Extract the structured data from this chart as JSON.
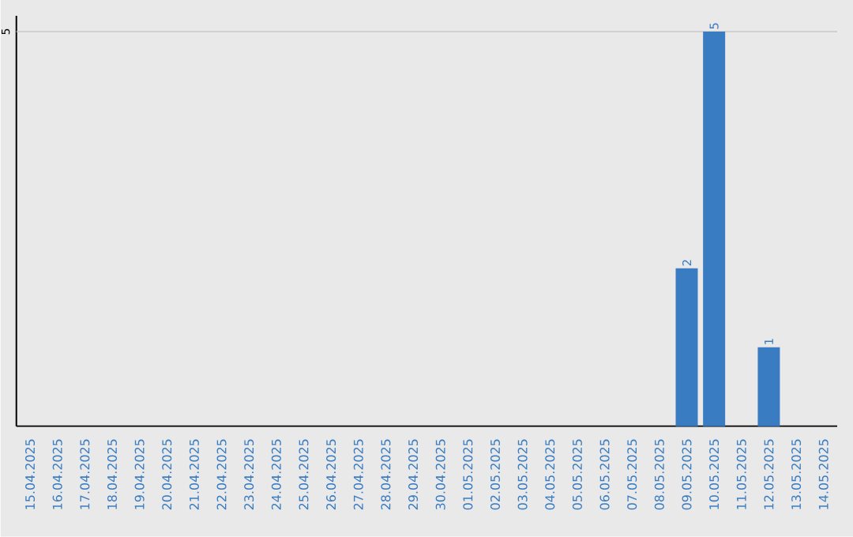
{
  "chart_data": {
    "type": "bar",
    "categories": [
      "15.04.2025",
      "16.04.2025",
      "17.04.2025",
      "18.04.2025",
      "19.04.2025",
      "20.04.2025",
      "21.04.2025",
      "22.04.2025",
      "23.04.2025",
      "24.04.2025",
      "25.04.2025",
      "26.04.2025",
      "27.04.2025",
      "28.04.2025",
      "29.04.2025",
      "30.04.2025",
      "01.05.2025",
      "02.05.2025",
      "03.05.2025",
      "04.05.2025",
      "05.05.2025",
      "06.05.2025",
      "07.05.2025",
      "08.05.2025",
      "09.05.2025",
      "10.05.2025",
      "11.05.2025",
      "12.05.2025",
      "13.05.2025",
      "14.05.2025"
    ],
    "values": [
      null,
      null,
      null,
      null,
      null,
      null,
      null,
      null,
      null,
      null,
      null,
      null,
      null,
      null,
      null,
      null,
      null,
      null,
      null,
      null,
      null,
      null,
      null,
      null,
      2,
      5,
      null,
      1,
      null,
      null
    ],
    "value_labels": [
      null,
      null,
      null,
      null,
      null,
      null,
      null,
      null,
      null,
      null,
      null,
      null,
      null,
      null,
      null,
      null,
      null,
      null,
      null,
      null,
      null,
      null,
      null,
      null,
      "2",
      "5",
      null,
      "1",
      null,
      null
    ],
    "color": "#3a7cc1",
    "ref_lines": [
      {
        "axis": "y",
        "value": 5,
        "label": "5",
        "color": "#c8c8c8"
      }
    ]
  }
}
